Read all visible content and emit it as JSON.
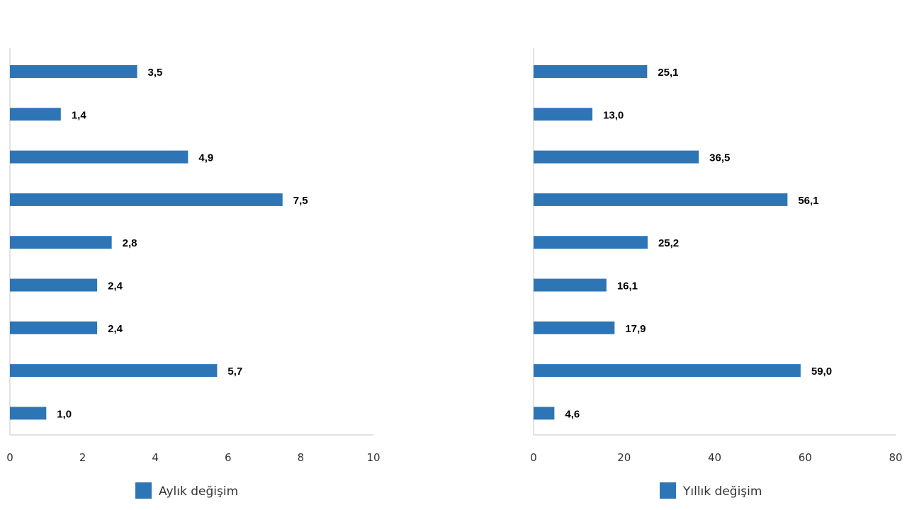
{
  "chart_data": [
    {
      "type": "bar",
      "orientation": "horizontal",
      "values": [
        3.5,
        1.4,
        4.9,
        7.5,
        2.8,
        2.4,
        2.4,
        5.7,
        1.0
      ],
      "value_labels": [
        "3,5",
        "1,4",
        "4,9",
        "7,5",
        "2,8",
        "2,4",
        "2,4",
        "5,7",
        "1,0"
      ],
      "xlim": [
        0,
        10
      ],
      "x_ticks": [
        0,
        2,
        4,
        6,
        8,
        10
      ],
      "x_tick_labels": [
        "0",
        "2",
        "4",
        "6",
        "8",
        "10"
      ],
      "grid": false,
      "legend": {
        "label": "Aylık değişim",
        "placement": "bottom"
      },
      "color": "#2e75b6"
    },
    {
      "type": "bar",
      "orientation": "horizontal",
      "values": [
        25.1,
        13.0,
        36.5,
        56.1,
        25.2,
        16.1,
        17.9,
        59.0,
        4.6
      ],
      "value_labels": [
        "25,1",
        "13,0",
        "36,5",
        "56,1",
        "25,2",
        "16,1",
        "17,9",
        "59,0",
        "4,6"
      ],
      "xlim": [
        0,
        80
      ],
      "x_ticks": [
        0,
        20,
        40,
        60,
        80
      ],
      "x_tick_labels": [
        "0",
        "20",
        "40",
        "60",
        "80"
      ],
      "grid": false,
      "legend": {
        "label": "Yıllık değişim",
        "placement": "bottom"
      },
      "color": "#2e75b6"
    }
  ]
}
